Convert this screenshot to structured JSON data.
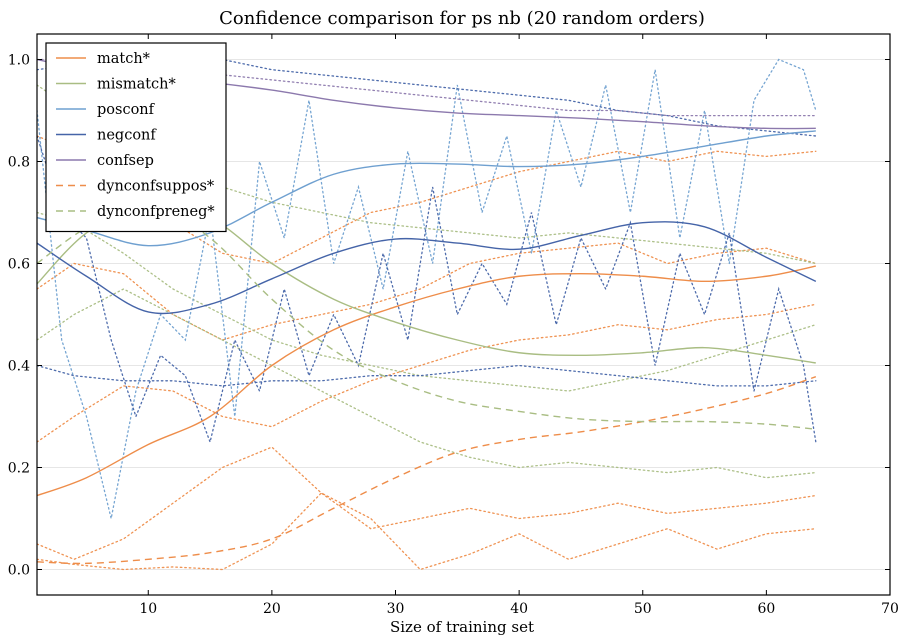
{
  "chart_data": {
    "type": "line",
    "title": "Confidence comparison for ps nb (20 random orders)",
    "xlabel": "Size of training set",
    "ylabel": "",
    "xlim": [
      1,
      70
    ],
    "ylim": [
      -0.05,
      1.05
    ],
    "xticks": [
      "10",
      "20",
      "30",
      "40",
      "50",
      "60",
      "70"
    ],
    "yticks": [
      "0.0",
      "0.2",
      "0.4",
      "0.6",
      "0.8",
      "1.0"
    ],
    "xtick_values": [
      10,
      20,
      30,
      40,
      50,
      60,
      70
    ],
    "ytick_values": [
      0.0,
      0.2,
      0.4,
      0.6,
      0.8,
      1.0
    ],
    "grid": "horizontal",
    "legend_position": "top-left",
    "series": [
      {
        "name": "match*",
        "color": "#ee8d4a",
        "style": "solid",
        "x": [
          1,
          5,
          10,
          15,
          20,
          25,
          30,
          35,
          40,
          45,
          50,
          55,
          60,
          64
        ],
        "y": [
          0.145,
          0.18,
          0.245,
          0.3,
          0.4,
          0.47,
          0.515,
          0.55,
          0.575,
          0.58,
          0.575,
          0.565,
          0.575,
          0.595
        ]
      },
      {
        "name": "mismatch*",
        "color": "#a9bd83",
        "style": "solid",
        "x": [
          1,
          5,
          10,
          15,
          20,
          25,
          30,
          35,
          40,
          45,
          50,
          55,
          60,
          64
        ],
        "y": [
          0.56,
          0.66,
          0.72,
          0.69,
          0.6,
          0.53,
          0.485,
          0.45,
          0.425,
          0.42,
          0.425,
          0.435,
          0.42,
          0.405
        ]
      },
      {
        "name": "posconf",
        "color": "#6fa0d0",
        "style": "solid",
        "x": [
          1,
          5,
          10,
          15,
          20,
          25,
          30,
          35,
          40,
          45,
          50,
          55,
          60,
          64
        ],
        "y": [
          0.69,
          0.665,
          0.635,
          0.66,
          0.72,
          0.775,
          0.795,
          0.795,
          0.79,
          0.795,
          0.81,
          0.83,
          0.85,
          0.86
        ]
      },
      {
        "name": "negconf",
        "color": "#4564a8",
        "style": "solid",
        "x": [
          1,
          5,
          10,
          15,
          20,
          25,
          30,
          35,
          40,
          45,
          50,
          55,
          60,
          64
        ],
        "y": [
          0.64,
          0.575,
          0.505,
          0.52,
          0.57,
          0.62,
          0.648,
          0.64,
          0.628,
          0.655,
          0.68,
          0.672,
          0.612,
          0.565
        ]
      },
      {
        "name": "confsep",
        "color": "#8c79ad",
        "style": "solid",
        "x": [
          1,
          5,
          10,
          15,
          20,
          25,
          30,
          35,
          40,
          45,
          50,
          55,
          60,
          64
        ],
        "y": [
          1.0,
          0.98,
          0.965,
          0.955,
          0.94,
          0.92,
          0.905,
          0.895,
          0.89,
          0.885,
          0.878,
          0.87,
          0.865,
          0.865
        ]
      },
      {
        "name": "dynconfsuppos*",
        "color": "#ee8d4a",
        "style": "dashed",
        "x": [
          1,
          5,
          10,
          15,
          20,
          25,
          30,
          35,
          40,
          45,
          50,
          55,
          60,
          64
        ],
        "y": [
          0.015,
          0.012,
          0.02,
          0.033,
          0.06,
          0.12,
          0.18,
          0.23,
          0.255,
          0.27,
          0.29,
          0.315,
          0.345,
          0.378
        ]
      },
      {
        "name": "dynconfpreneg*",
        "color": "#a9bd83",
        "style": "dashed",
        "x": [
          1,
          5,
          10,
          15,
          20,
          25,
          30,
          35,
          40,
          45,
          50,
          55,
          60,
          64
        ],
        "y": [
          0.6,
          0.67,
          0.72,
          0.65,
          0.53,
          0.43,
          0.37,
          0.33,
          0.31,
          0.295,
          0.29,
          0.29,
          0.285,
          0.275
        ]
      }
    ],
    "dotted_series": [
      {
        "color": "#ee8d4a",
        "x": [
          1,
          4,
          8,
          12,
          16,
          20,
          24,
          28,
          32,
          36,
          40,
          44,
          48,
          52,
          56,
          60,
          64
        ],
        "y": [
          0.02,
          0.01,
          0.0,
          0.005,
          0.0,
          0.05,
          0.15,
          0.1,
          0.0,
          0.03,
          0.07,
          0.02,
          0.05,
          0.08,
          0.04,
          0.07,
          0.08
        ]
      },
      {
        "color": "#ee8d4a",
        "x": [
          1,
          4,
          8,
          12,
          16,
          20,
          24,
          28,
          32,
          36,
          40,
          44,
          48,
          52,
          56,
          60,
          64
        ],
        "y": [
          0.05,
          0.02,
          0.06,
          0.13,
          0.2,
          0.24,
          0.15,
          0.08,
          0.1,
          0.12,
          0.1,
          0.11,
          0.13,
          0.11,
          0.12,
          0.13,
          0.145
        ]
      },
      {
        "color": "#ee8d4a",
        "x": [
          1,
          4,
          8,
          12,
          16,
          20,
          24,
          28,
          32,
          36,
          40,
          44,
          48,
          52,
          56,
          60,
          64
        ],
        "y": [
          0.25,
          0.3,
          0.36,
          0.35,
          0.3,
          0.28,
          0.33,
          0.37,
          0.4,
          0.43,
          0.45,
          0.46,
          0.48,
          0.47,
          0.49,
          0.5,
          0.52
        ]
      },
      {
        "color": "#ee8d4a",
        "x": [
          1,
          4,
          8,
          12,
          16,
          20,
          24,
          28,
          32,
          36,
          40,
          44,
          48,
          52,
          56,
          60,
          64
        ],
        "y": [
          0.55,
          0.6,
          0.58,
          0.5,
          0.45,
          0.48,
          0.5,
          0.52,
          0.55,
          0.6,
          0.62,
          0.63,
          0.64,
          0.6,
          0.62,
          0.63,
          0.6
        ]
      },
      {
        "color": "#ee8d4a",
        "x": [
          1,
          4,
          8,
          12,
          16,
          20,
          24,
          28,
          32,
          36,
          40,
          44,
          48,
          52,
          56,
          60,
          64
        ],
        "y": [
          0.85,
          0.82,
          0.75,
          0.68,
          0.62,
          0.6,
          0.65,
          0.7,
          0.72,
          0.75,
          0.78,
          0.8,
          0.82,
          0.8,
          0.82,
          0.81,
          0.82
        ]
      },
      {
        "color": "#a9bd83",
        "x": [
          1,
          4,
          8,
          12,
          16,
          20,
          24,
          28,
          32,
          36,
          40,
          44,
          48,
          52,
          56,
          60,
          64
        ],
        "y": [
          0.95,
          0.9,
          0.85,
          0.8,
          0.75,
          0.72,
          0.7,
          0.68,
          0.67,
          0.66,
          0.65,
          0.66,
          0.65,
          0.64,
          0.63,
          0.62,
          0.6
        ]
      },
      {
        "color": "#a9bd83",
        "x": [
          1,
          4,
          8,
          12,
          16,
          20,
          24,
          28,
          32,
          36,
          40,
          44,
          48,
          52,
          56,
          60,
          64
        ],
        "y": [
          0.45,
          0.5,
          0.55,
          0.5,
          0.45,
          0.4,
          0.35,
          0.3,
          0.25,
          0.22,
          0.2,
          0.21,
          0.2,
          0.19,
          0.2,
          0.18,
          0.19
        ]
      },
      {
        "color": "#a9bd83",
        "x": [
          1,
          4,
          8,
          12,
          16,
          20,
          24,
          28,
          32,
          36,
          40,
          44,
          48,
          52,
          56,
          60,
          64
        ],
        "y": [
          0.7,
          0.68,
          0.62,
          0.55,
          0.5,
          0.45,
          0.42,
          0.4,
          0.38,
          0.37,
          0.36,
          0.35,
          0.37,
          0.39,
          0.42,
          0.45,
          0.48
        ]
      },
      {
        "color": "#6fa0d0",
        "x": [
          1,
          3,
          5,
          7,
          9,
          11,
          13,
          15,
          17,
          19,
          21,
          23,
          25,
          27,
          29,
          31,
          33,
          35,
          37,
          39,
          41,
          43,
          45,
          47,
          49,
          51,
          53,
          55,
          57,
          59,
          61,
          63,
          64
        ],
        "y": [
          0.9,
          0.45,
          0.3,
          0.1,
          0.35,
          0.5,
          0.45,
          0.7,
          0.3,
          0.8,
          0.65,
          0.92,
          0.6,
          0.75,
          0.55,
          0.82,
          0.6,
          0.95,
          0.7,
          0.85,
          0.62,
          0.9,
          0.75,
          0.95,
          0.7,
          0.98,
          0.65,
          0.9,
          0.6,
          0.92,
          1.0,
          0.98,
          0.9
        ]
      },
      {
        "color": "#4564a8",
        "x": [
          1,
          3,
          5,
          7,
          9,
          11,
          13,
          15,
          17,
          19,
          21,
          23,
          25,
          27,
          29,
          31,
          33,
          35,
          37,
          39,
          41,
          43,
          45,
          47,
          49,
          51,
          53,
          55,
          57,
          59,
          61,
          63,
          64
        ],
        "y": [
          0.85,
          0.7,
          0.65,
          0.45,
          0.3,
          0.42,
          0.38,
          0.25,
          0.45,
          0.35,
          0.55,
          0.38,
          0.5,
          0.4,
          0.62,
          0.45,
          0.75,
          0.5,
          0.6,
          0.52,
          0.7,
          0.48,
          0.65,
          0.55,
          0.68,
          0.4,
          0.62,
          0.5,
          0.66,
          0.35,
          0.55,
          0.4,
          0.25
        ]
      },
      {
        "color": "#4564a8",
        "x": [
          1,
          4,
          8,
          12,
          16,
          20,
          24,
          28,
          32,
          36,
          40,
          44,
          48,
          52,
          56,
          60,
          64
        ],
        "y": [
          0.4,
          0.38,
          0.37,
          0.37,
          0.36,
          0.37,
          0.37,
          0.38,
          0.38,
          0.39,
          0.4,
          0.39,
          0.38,
          0.37,
          0.36,
          0.36,
          0.37
        ]
      },
      {
        "color": "#4564a8",
        "x": [
          1,
          4,
          8,
          12,
          16,
          20,
          24,
          28,
          32,
          36,
          40,
          44,
          48,
          52,
          56,
          60,
          64
        ],
        "y": [
          0.98,
          0.99,
          0.99,
          0.99,
          1.0,
          0.98,
          0.97,
          0.96,
          0.95,
          0.94,
          0.93,
          0.92,
          0.9,
          0.89,
          0.87,
          0.86,
          0.85
        ]
      },
      {
        "color": "#8c79ad",
        "x": [
          1,
          4,
          8,
          12,
          16,
          20,
          24,
          28,
          32,
          36,
          40,
          44,
          48,
          52,
          56,
          60,
          64
        ],
        "y": [
          1.0,
          1.0,
          0.99,
          0.98,
          0.97,
          0.96,
          0.95,
          0.94,
          0.93,
          0.92,
          0.91,
          0.9,
          0.9,
          0.89,
          0.89,
          0.89,
          0.89
        ]
      }
    ]
  }
}
